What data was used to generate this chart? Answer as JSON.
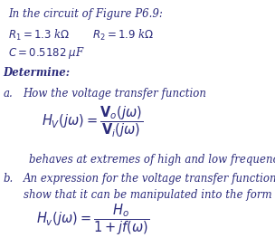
{
  "bg_color": "#ffffff",
  "text_color": "#2c2c7c",
  "title_line": "In the circuit of Figure P6.9:",
  "param_R1": "$R_1 = 1.3$ k$\\Omega$",
  "param_R2": "$R_2 = 1.9$ k$\\Omega$",
  "param_C": "$C = 0.5182\\;\\mu$F",
  "determine": "Determine:",
  "part_a_label": "a.",
  "part_a_text": "How the voltage transfer function",
  "eq_HV": "$H_V(j\\omega) = \\dfrac{\\mathbf{V}_o(j\\omega)}{\\mathbf{V}_i(j\\omega)}$",
  "part_a_end": "behaves at extremes of high and low frequencies.",
  "part_b_label": "b.",
  "part_b_text": "An expression for the voltage transfer function and\nshow that it can be manipulated into the form",
  "eq_Hv": "$H_v(j\\omega) = \\dfrac{H_o}{1 + jf(\\omega)}$",
  "figsize": [
    3.04,
    2.73
  ],
  "dpi": 100
}
